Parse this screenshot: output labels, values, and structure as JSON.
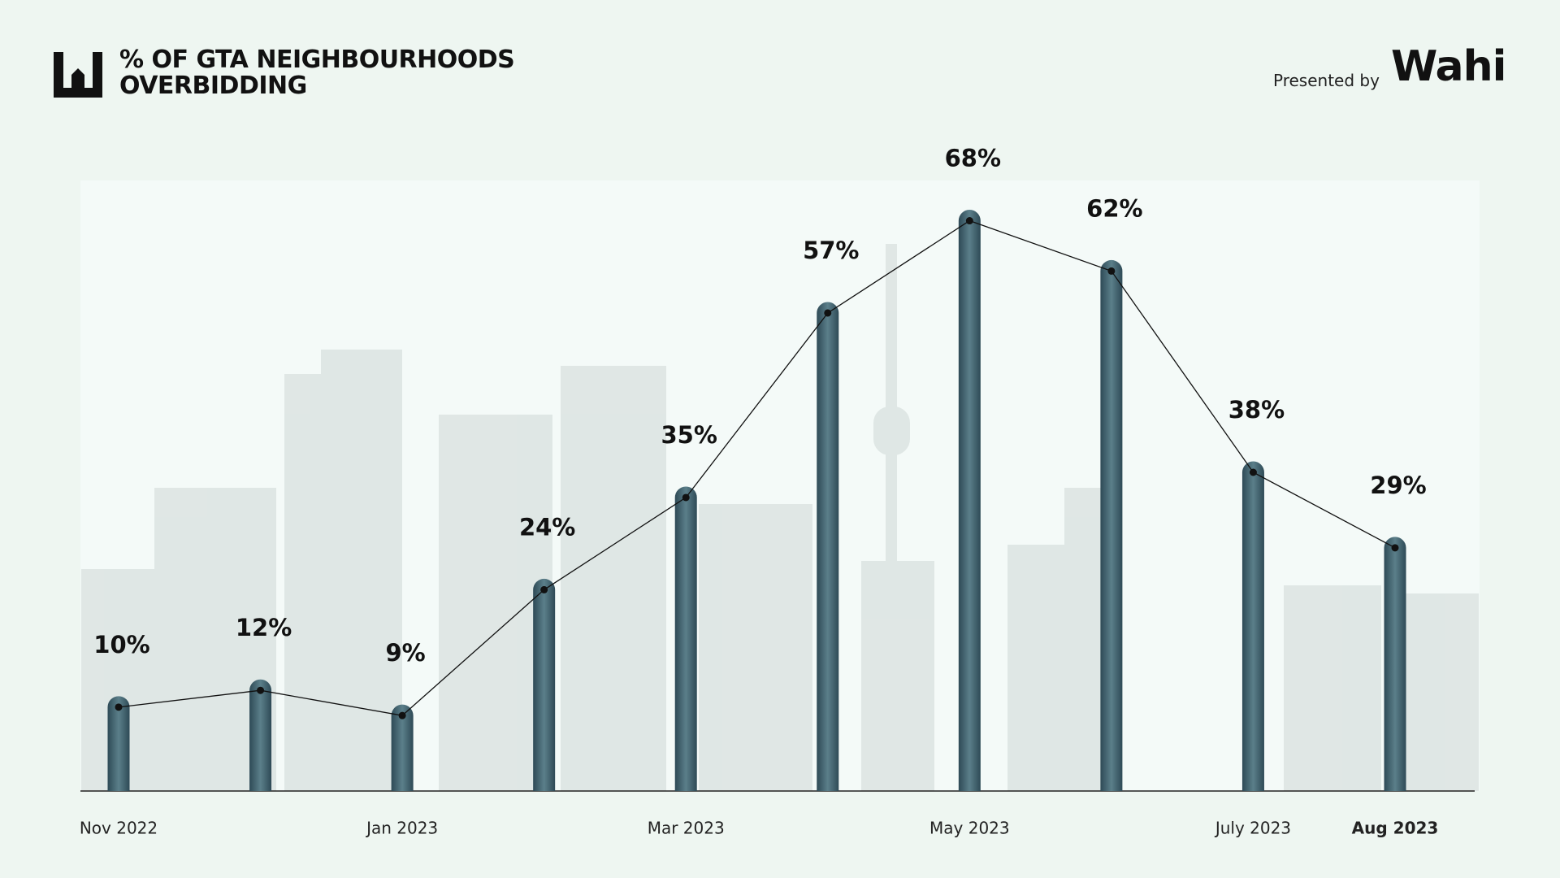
{
  "header": {
    "presented_by": "Presented by",
    "brand": "Wahi"
  },
  "chart_data": {
    "type": "bar-line",
    "title": "% OF GTA NEIGHBOURHOODS OVERBIDDING",
    "categories": [
      "Nov 2022",
      null,
      "Jan 2023",
      null,
      "Mar 2023",
      null,
      "May 2023",
      null,
      "July 2023",
      "Aug 2023"
    ],
    "values": [
      10,
      12,
      9,
      24,
      35,
      57,
      68,
      62,
      38,
      29
    ],
    "value_labels": [
      "10%",
      "12%",
      "9%",
      "24%",
      "35%",
      "57%",
      "68%",
      "62%",
      "38%",
      "29%"
    ],
    "color": "#2e4a56",
    "line_color": "#111111",
    "ylim": [
      0,
      72.8
    ]
  }
}
